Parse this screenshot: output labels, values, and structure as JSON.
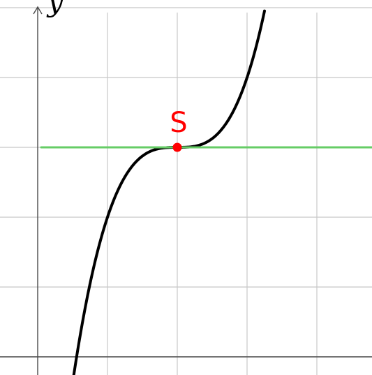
{
  "chart_data": {
    "type": "line",
    "title": "",
    "xlabel": "",
    "ylabel": "y",
    "grid": true,
    "xlim": [
      -0.5,
      4.8
    ],
    "ylim": [
      -3.0,
      2.05
    ],
    "series": [
      {
        "kind": "curve",
        "function": "(x-2)^3",
        "color": "#000000",
        "x_range": [
          0.5,
          3.25
        ]
      },
      {
        "kind": "tangent",
        "function": "0",
        "color": "#66cc66",
        "x_range": [
          0.05,
          4.8
        ]
      }
    ],
    "points": [
      {
        "label": "S",
        "x": 2,
        "y": 0,
        "color": "#ff0000"
      }
    ]
  }
}
